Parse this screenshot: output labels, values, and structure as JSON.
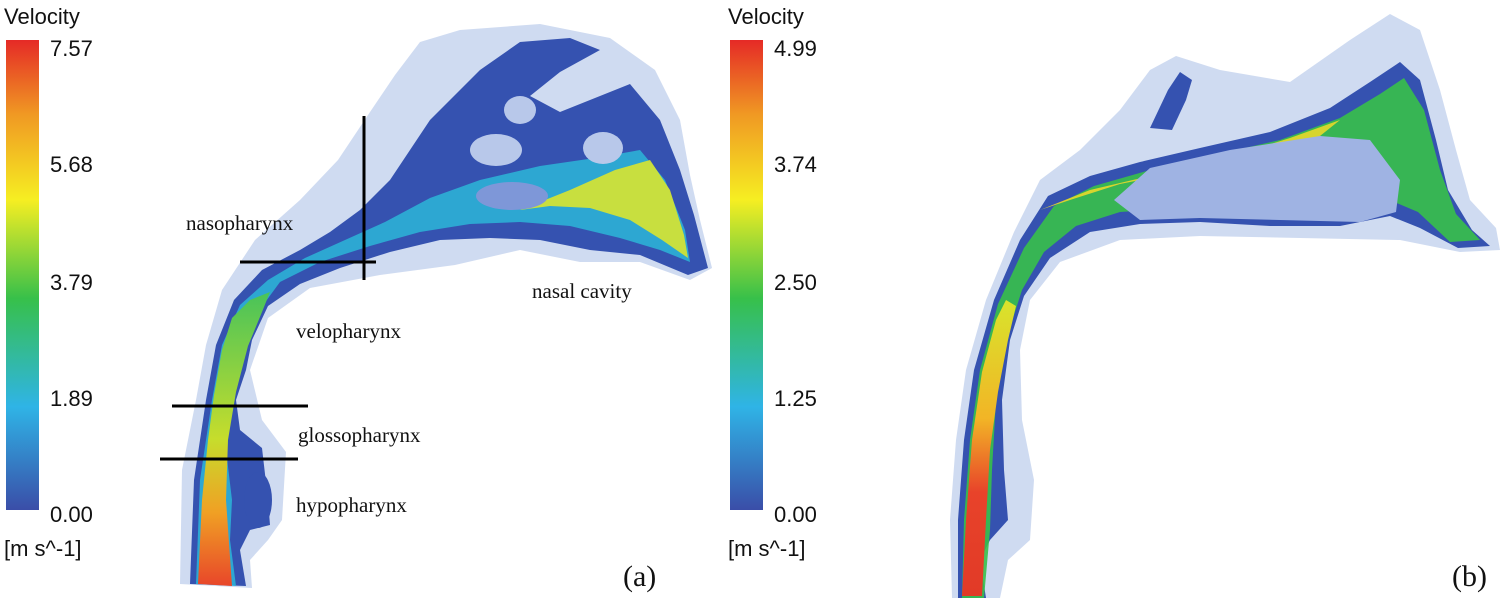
{
  "panels": [
    {
      "id": "a",
      "label": "(a)",
      "colorbar": {
        "title": "Velocity",
        "unit": "[m s^-1]",
        "ticks": [
          "7.57",
          "5.68",
          "3.79",
          "1.89",
          "0.00"
        ]
      },
      "regions": [
        "nasopharynx",
        "velopharynx",
        "glossopharynx",
        "hypopharynx",
        "nasal cavity"
      ]
    },
    {
      "id": "b",
      "label": "(b)",
      "colorbar": {
        "title": "Velocity",
        "unit": "[m s^-1]",
        "ticks": [
          "4.99",
          "3.74",
          "2.50",
          "1.25",
          "0.00"
        ]
      }
    }
  ],
  "colors": {
    "scale": [
      "#3a4ea8",
      "#2fb4e6",
      "#37c04a",
      "#f6ee22",
      "#f09a23",
      "#e52a26"
    ],
    "envelope": "#a8bde6"
  }
}
